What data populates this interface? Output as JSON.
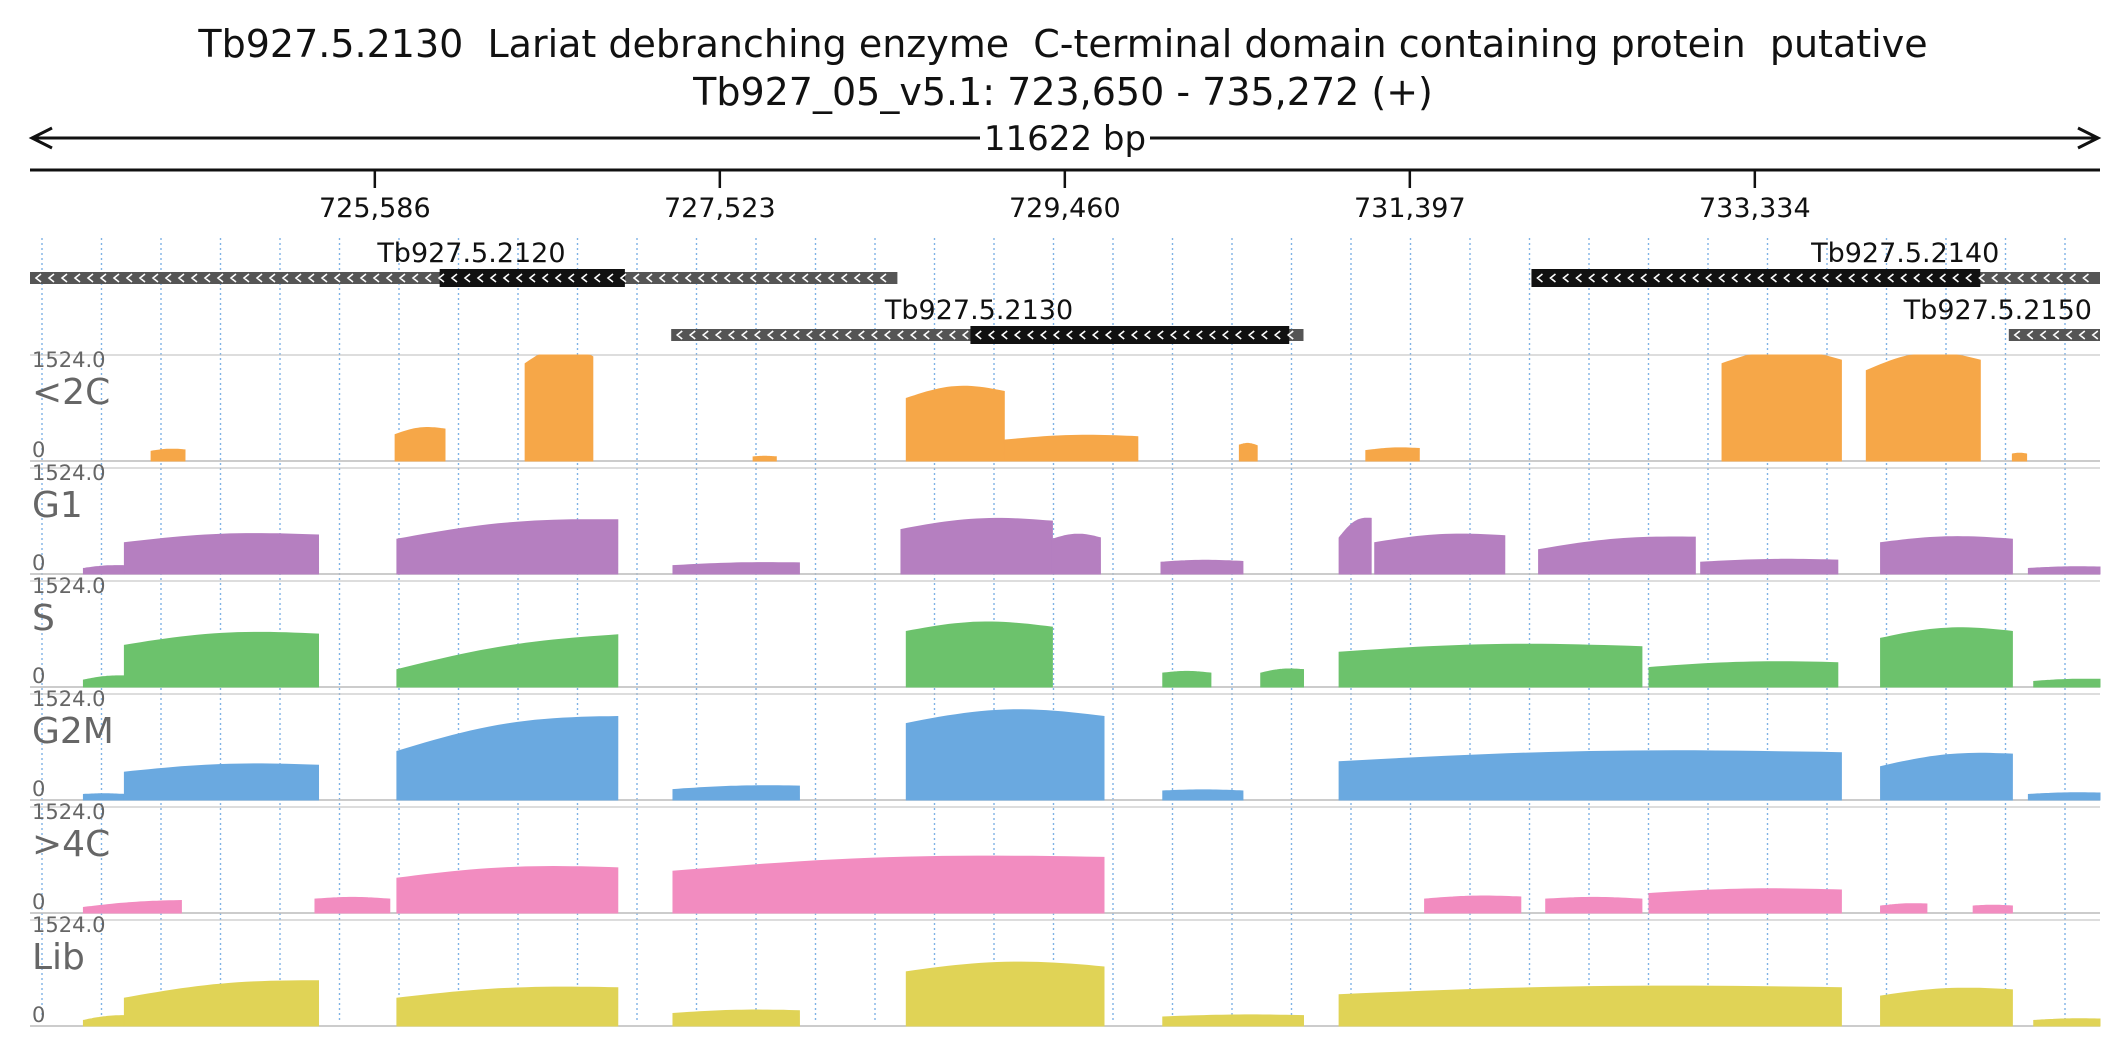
{
  "header": {
    "title": "Tb927.5.2130  Lariat debranching enzyme  C-terminal domain containing protein  putative",
    "location": "Tb927_05_v5.1: 723,650 - 735,272 (+)"
  },
  "ruler": {
    "span_label": "11622 bp",
    "start": 723650,
    "end": 735272,
    "ticks": [
      {
        "pos": 725586,
        "label": "725,586"
      },
      {
        "pos": 727523,
        "label": "727,523"
      },
      {
        "pos": 729460,
        "label": "729,460"
      },
      {
        "pos": 731397,
        "label": "731,397"
      },
      {
        "pos": 733334,
        "label": "733,334"
      }
    ]
  },
  "genes": [
    {
      "name": "Tb927.5.2120",
      "utr": [
        723650,
        728520
      ],
      "cds": [
        725950,
        726990
      ],
      "row": 0,
      "label_at": 725600
    },
    {
      "name": "Tb927.5.2130",
      "utr": [
        727250,
        730800
      ],
      "cds": [
        728930,
        730720
      ],
      "row": 1,
      "label_at": 728450
    },
    {
      "name": "Tb927.5.2140",
      "utr": [
        732080,
        735272
      ],
      "cds": [
        732080,
        734600
      ],
      "row": 0,
      "label_at": 733650
    },
    {
      "name": "Tb927.5.2150",
      "utr": [
        734760,
        735272
      ],
      "cds": [],
      "row": 1,
      "label_at": 734170
    }
  ],
  "tracks": [
    {
      "name": "<2C",
      "max_label": "1524.0",
      "min_label": "0",
      "color": "#f6a748"
    },
    {
      "name": "G1",
      "max_label": "1524.0",
      "min_label": "0",
      "color": "#b57fc0"
    },
    {
      "name": "S",
      "max_label": "1524.0",
      "min_label": "0",
      "color": "#6cc26c"
    },
    {
      "name": "G2M",
      "max_label": "1524.0",
      "min_label": "0",
      "color": "#6aa9e0"
    },
    {
      "name": ">4C",
      "max_label": "1524.0",
      "min_label": "0",
      "color": "#f28cc0"
    },
    {
      "name": "Lib",
      "max_label": "1524.0",
      "min_label": "0",
      "color": "#e0d356"
    }
  ],
  "chart_data": {
    "type": "area",
    "xlim": [
      723650,
      735272
    ],
    "ylim": [
      0,
      1524.0
    ],
    "series": [
      {
        "name": "<2C",
        "segments": [
          {
            "x": [
              724330,
              724520
            ],
            "y": [
              140,
              160
            ]
          },
          {
            "x": [
              725700,
              725980
            ],
            "y": [
              380,
              460
            ]
          },
          {
            "x": [
              726430,
              726810
            ],
            "y": [
              1400,
              1500
            ]
          },
          {
            "x": [
              727710,
              727840
            ],
            "y": [
              60,
              60
            ]
          },
          {
            "x": [
              728570,
              729120
            ],
            "y": [
              900,
              1000
            ]
          },
          {
            "x": [
              729120,
              729870
            ],
            "y": [
              300,
              350
            ]
          },
          {
            "x": [
              730440,
              730540
            ],
            "y": [
              230,
              220
            ]
          },
          {
            "x": [
              731150,
              731450
            ],
            "y": [
              150,
              180
            ]
          },
          {
            "x": [
              733150,
              733820
            ],
            "y": [
              1400,
              1450
            ]
          },
          {
            "x": [
              733960,
              734600
            ],
            "y": [
              1300,
              1450
            ]
          },
          {
            "x": [
              734780,
              734860
            ],
            "y": [
              100,
              100
            ]
          }
        ]
      },
      {
        "name": "G1",
        "segments": [
          {
            "x": [
              723950,
              724180
            ],
            "y": [
              80,
              120
            ]
          },
          {
            "x": [
              724180,
              725270
            ],
            "y": [
              450,
              560
            ]
          },
          {
            "x": [
              725710,
              726950
            ],
            "y": [
              500,
              780
            ]
          },
          {
            "x": [
              727260,
              727970
            ],
            "y": [
              120,
              160
            ]
          },
          {
            "x": [
              728540,
              729390
            ],
            "y": [
              640,
              760
            ]
          },
          {
            "x": [
              729390,
              729660
            ],
            "y": [
              500,
              520
            ]
          },
          {
            "x": [
              730000,
              730460
            ],
            "y": [
              170,
              180
            ]
          },
          {
            "x": [
              731000,
              731180
            ],
            "y": [
              520,
              800
            ]
          },
          {
            "x": [
              731200,
              731930
            ],
            "y": [
              450,
              550
            ]
          },
          {
            "x": [
              732120,
              733000
            ],
            "y": [
              350,
              530
            ]
          },
          {
            "x": [
              733030,
              733800
            ],
            "y": [
              170,
              200
            ]
          },
          {
            "x": [
              734040,
              734780
            ],
            "y": [
              450,
              500
            ]
          },
          {
            "x": [
              734870,
              735272
            ],
            "y": [
              80,
              100
            ]
          }
        ]
      },
      {
        "name": "S",
        "segments": [
          {
            "x": [
              723950,
              724180
            ],
            "y": [
              100,
              160
            ]
          },
          {
            "x": [
              724180,
              725270
            ],
            "y": [
              600,
              760
            ]
          },
          {
            "x": [
              725710,
              726950
            ],
            "y": [
              250,
              750
            ]
          },
          {
            "x": [
              728570,
              729390
            ],
            "y": [
              800,
              860
            ]
          },
          {
            "x": [
              730010,
              730280
            ],
            "y": [
              200,
              200
            ]
          },
          {
            "x": [
              730560,
              730800
            ],
            "y": [
              200,
              250
            ]
          },
          {
            "x": [
              731000,
              732700
            ],
            "y": [
              500,
              580
            ]
          },
          {
            "x": [
              732740,
              733800
            ],
            "y": [
              280,
              350
            ]
          },
          {
            "x": [
              734040,
              734780
            ],
            "y": [
              700,
              800
            ]
          },
          {
            "x": [
              734900,
              735272
            ],
            "y": [
              80,
              110
            ]
          }
        ]
      },
      {
        "name": "G2M",
        "segments": [
          {
            "x": [
              723950,
              724180
            ],
            "y": [
              80,
              80
            ]
          },
          {
            "x": [
              724180,
              725270
            ],
            "y": [
              400,
              500
            ]
          },
          {
            "x": [
              725710,
              726950
            ],
            "y": [
              700,
              1200
            ]
          },
          {
            "x": [
              727260,
              727970
            ],
            "y": [
              150,
              200
            ]
          },
          {
            "x": [
              728570,
              729680
            ],
            "y": [
              1100,
              1200
            ]
          },
          {
            "x": [
              730010,
              730460
            ],
            "y": [
              130,
              130
            ]
          },
          {
            "x": [
              731000,
              733820
            ],
            "y": [
              550,
              680
            ]
          },
          {
            "x": [
              734040,
              734780
            ],
            "y": [
              480,
              660
            ]
          },
          {
            "x": [
              734870,
              735272
            ],
            "y": [
              80,
              100
            ]
          }
        ]
      },
      {
        "name": ">4C",
        "segments": [
          {
            "x": [
              723950,
              724500
            ],
            "y": [
              80,
              180
            ]
          },
          {
            "x": [
              725250,
              725670
            ],
            "y": [
              200,
              200
            ]
          },
          {
            "x": [
              725710,
              726950
            ],
            "y": [
              500,
              650
            ]
          },
          {
            "x": [
              727260,
              729680
            ],
            "y": [
              600,
              800
            ]
          },
          {
            "x": [
              731480,
              732020
            ],
            "y": [
              200,
              230
            ]
          },
          {
            "x": [
              732160,
              732700
            ],
            "y": [
              200,
              200
            ]
          },
          {
            "x": [
              732740,
              733820
            ],
            "y": [
              280,
              330
            ]
          },
          {
            "x": [
              734040,
              734300
            ],
            "y": [
              100,
              130
            ]
          },
          {
            "x": [
              734560,
              734780
            ],
            "y": [
              100,
              100
            ]
          }
        ]
      },
      {
        "name": "Lib",
        "segments": [
          {
            "x": [
              723950,
              724180
            ],
            "y": [
              80,
              150
            ]
          },
          {
            "x": [
              724180,
              725270
            ],
            "y": [
              400,
              650
            ]
          },
          {
            "x": [
              725710,
              726950
            ],
            "y": [
              400,
              550
            ]
          },
          {
            "x": [
              727260,
              727970
            ],
            "y": [
              180,
              220
            ]
          },
          {
            "x": [
              728570,
              729680
            ],
            "y": [
              780,
              850
            ]
          },
          {
            "x": [
              730010,
              730800
            ],
            "y": [
              130,
              150
            ]
          },
          {
            "x": [
              731000,
              733820
            ],
            "y": [
              450,
              550
            ]
          },
          {
            "x": [
              734040,
              734780
            ],
            "y": [
              430,
              520
            ]
          },
          {
            "x": [
              734900,
              735272
            ],
            "y": [
              80,
              100
            ]
          }
        ]
      }
    ]
  }
}
